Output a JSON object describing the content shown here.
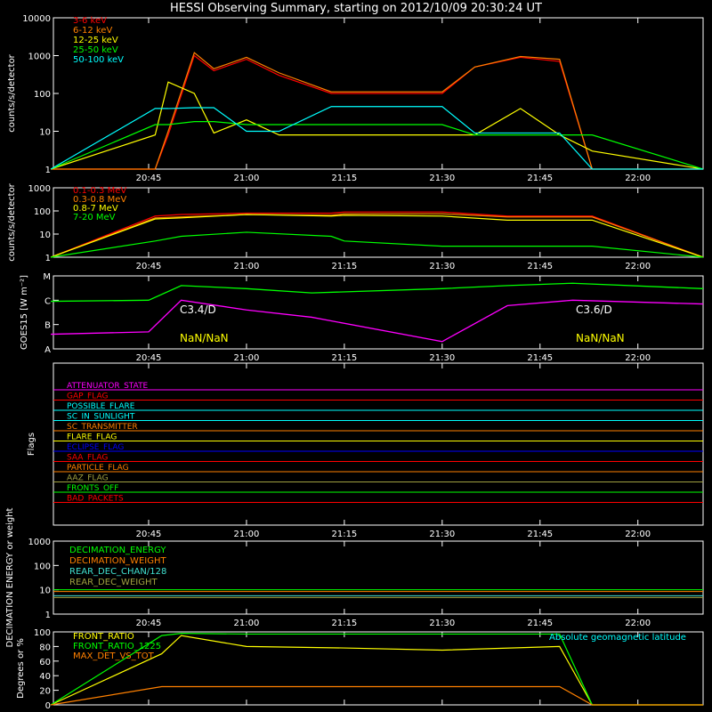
{
  "title": "HESSI Observing Summary, starting on 2012/10/09 20:30:24 UT",
  "time_ticks": [
    "20:45",
    "21:00",
    "21:15",
    "21:30",
    "21:45",
    "22:00"
  ],
  "colors": {
    "white": "#ffffff",
    "red": "#ff0000",
    "orange": "#ff8000",
    "yellow": "#ffff00",
    "green": "#00ff00",
    "cyan": "#00ffff",
    "magenta": "#ff00ff",
    "blue": "#0000ff",
    "olive": "#a0a040",
    "ltcyan": "#40e0d0"
  },
  "chart_data": [
    {
      "type": "line",
      "panel": "rates",
      "ylabel": "counts/s/detector",
      "y_scale": "log",
      "ylim": [
        1,
        10000
      ],
      "y_ticks": [
        "1",
        "10",
        "100",
        "1000",
        "10000"
      ],
      "x": [
        "20:30",
        "20:46",
        "20:48",
        "20:52",
        "20:55",
        "21:00",
        "21:05",
        "21:13",
        "21:20",
        "21:30",
        "21:35",
        "21:42",
        "21:48",
        "21:53",
        "22:10"
      ],
      "series": [
        {
          "name": "3-6 keV",
          "color": "#ff0000",
          "values": [
            1,
            1,
            8,
            1000,
            400,
            800,
            300,
            100,
            100,
            100,
            500,
            900,
            700,
            1,
            1
          ]
        },
        {
          "name": "6-12 keV",
          "color": "#ff8000",
          "values": [
            1,
            1,
            10,
            1200,
            450,
            900,
            350,
            110,
            110,
            110,
            500,
            950,
            800,
            1,
            1
          ]
        },
        {
          "name": "12-25 keV",
          "color": "#ffff00",
          "values": [
            1,
            8,
            200,
            100,
            9,
            20,
            8,
            8,
            8,
            8,
            8,
            40,
            8,
            3,
            1
          ]
        },
        {
          "name": "25-50 keV",
          "color": "#00ff00",
          "values": [
            1,
            15,
            15,
            18,
            18,
            15,
            15,
            15,
            15,
            15,
            8,
            8,
            8,
            8,
            1
          ]
        },
        {
          "name": "50-100 keV",
          "color": "#00ffff",
          "values": [
            1,
            40,
            40,
            42,
            42,
            10,
            10,
            45,
            45,
            45,
            9,
            9,
            9,
            1,
            1
          ]
        }
      ]
    },
    {
      "type": "line",
      "panel": "high-energy",
      "ylabel": "counts/s/detector",
      "y_scale": "log",
      "ylim": [
        1,
        1000
      ],
      "y_ticks": [
        "1",
        "10",
        "100",
        "1000"
      ],
      "x": [
        "20:30",
        "20:46",
        "20:50",
        "21:00",
        "21:13",
        "21:15",
        "21:30",
        "21:40",
        "21:53",
        "22:10"
      ],
      "series": [
        {
          "name": "0.1-0.3 MeV",
          "color": "#ff0000",
          "values": [
            1,
            60,
            70,
            80,
            80,
            90,
            90,
            60,
            60,
            1
          ]
        },
        {
          "name": "0.3-0.8 MeV",
          "color": "#ff8000",
          "values": [
            1,
            50,
            55,
            70,
            65,
            75,
            75,
            55,
            55,
            1
          ]
        },
        {
          "name": "0.8-7 MeV",
          "color": "#ffff00",
          "values": [
            1,
            45,
            50,
            70,
            60,
            65,
            60,
            40,
            40,
            1
          ]
        },
        {
          "name": "7-20 MeV",
          "color": "#00ff00",
          "values": [
            1,
            5,
            8,
            12,
            8,
            5,
            3,
            3,
            3,
            1
          ]
        }
      ]
    },
    {
      "type": "line",
      "panel": "goes",
      "ylabel": "GOES15 [W m⁻²]",
      "y_ticks": [
        "A",
        "B",
        "C",
        "M"
      ],
      "annotations": [
        "C3.4/D",
        "NaN/NaN",
        "C3.6/D",
        "NaN/NaN"
      ],
      "x": [
        "20:30",
        "20:45",
        "20:50",
        "21:00",
        "21:10",
        "21:30",
        "21:40",
        "21:50",
        "22:10"
      ],
      "series": [
        {
          "name": "",
          "color": "#00ff00",
          "values": [
            "B9",
            "C1",
            "C4",
            "C3",
            "C2",
            "C3",
            "C4",
            "C5",
            "C3"
          ]
        },
        {
          "name": "",
          "color": "#ff00ff",
          "values": [
            "A4",
            "A5",
            "C1",
            "B4",
            "B2",
            "A2",
            "B6",
            "C1",
            "B7"
          ]
        }
      ]
    },
    {
      "type": "table",
      "panel": "flags",
      "ylabel": "Flags",
      "rows": [
        {
          "name": "ATTENUATOR_STATE",
          "color": "#ff00ff"
        },
        {
          "name": "GAP_FLAG",
          "color": "#ff0000"
        },
        {
          "name": "POSSIBLE_FLARE",
          "color": "#00ffff"
        },
        {
          "name": "SC_IN_SUNLIGHT",
          "color": "#00ffff"
        },
        {
          "name": "SC_TRANSMITTER",
          "color": "#ff8000"
        },
        {
          "name": "FLARE_FLAG",
          "color": "#ffff00"
        },
        {
          "name": "ECLIPSE_FLAG",
          "color": "#0000ff"
        },
        {
          "name": "SAA_FLAG",
          "color": "#ff0000"
        },
        {
          "name": "PARTICLE_FLAG",
          "color": "#ff8000"
        },
        {
          "name": "AAZ_FLAG",
          "color": "#a0a040"
        },
        {
          "name": "FRONTS_OFF",
          "color": "#00ff00"
        },
        {
          "name": "BAD_PACKETS",
          "color": "#ff0000"
        }
      ]
    },
    {
      "type": "line",
      "panel": "decimation",
      "ylabel": "DECIMATION ENERGY or weight",
      "y_scale": "log",
      "ylim": [
        1,
        1000
      ],
      "y_ticks": [
        "1",
        "10",
        "100",
        "1000"
      ],
      "series": [
        {
          "name": "DECIMATION_ENERGY",
          "color": "#00ff00"
        },
        {
          "name": "DECIMATION_WEIGHT",
          "color": "#ff8000"
        },
        {
          "name": "REAR_DEC_CHAN/128",
          "color": "#40e0d0"
        },
        {
          "name": "REAR_DEC_WEIGHT",
          "color": "#a0a040"
        }
      ]
    },
    {
      "type": "line",
      "panel": "ratios",
      "ylabel": "Degrees or %",
      "ylim": [
        0,
        100
      ],
      "y_ticks": [
        "0",
        "20",
        "40",
        "60",
        "80",
        "100"
      ],
      "annotation": "Absolute geomagnetic latitude",
      "series": [
        {
          "name": "FRONT_RATIO",
          "color": "#ffff00"
        },
        {
          "name": "FRONT_RATIO_1225",
          "color": "#00ff00"
        },
        {
          "name": "MAX_DET_VS_TOT",
          "color": "#ff8000"
        }
      ]
    }
  ]
}
